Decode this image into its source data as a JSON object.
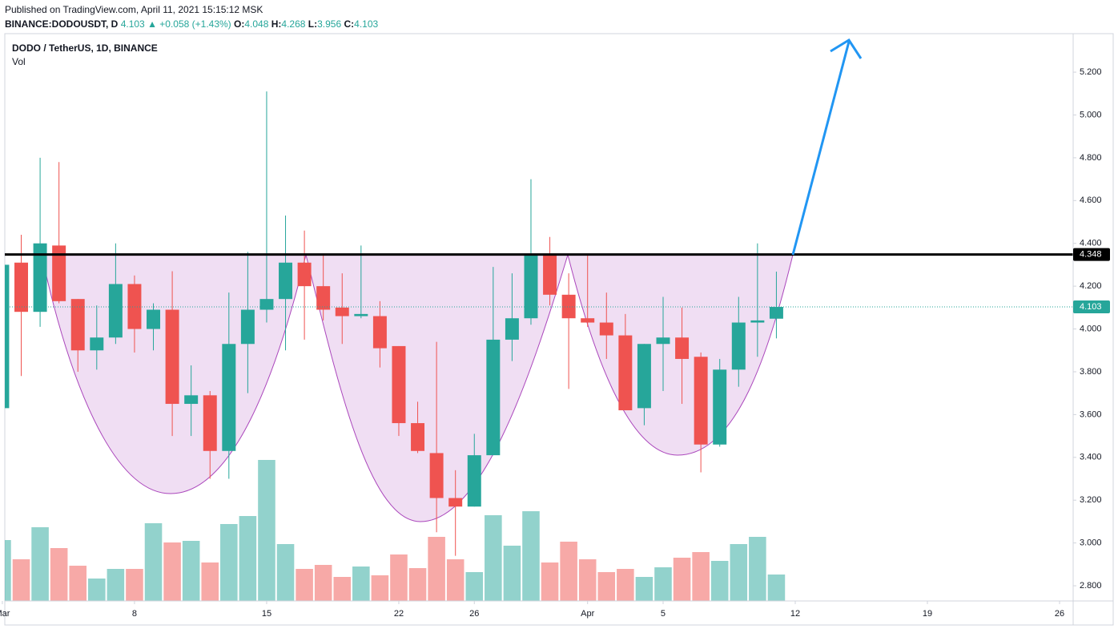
{
  "header": {
    "published": "Published on TradingView.com, April 11, 2021 15:15:12 MSK",
    "symbol": "BINANCE:DODOUSDT, D",
    "price": "4.103",
    "change": "▲ +0.058 (+1.43%)",
    "ohlc": [
      {
        "label": "O:",
        "value": "4.048"
      },
      {
        "label": "H:",
        "value": "4.268"
      },
      {
        "label": "L:",
        "value": "3.956"
      },
      {
        "label": "C:",
        "value": "4.103"
      }
    ]
  },
  "chart_data": {
    "type": "candlestick",
    "title": "DODO / TetherUS, 1D, BINANCE",
    "volume_label": "Vol",
    "up_color": "#26a69a",
    "down_color": "#ef5350",
    "open": [
      3.63,
      4.31,
      4.08,
      4.39,
      4.14,
      3.9,
      3.96,
      4.21,
      4.0,
      4.09,
      3.65,
      3.69,
      3.43,
      3.93,
      4.09,
      4.14,
      4.31,
      4.2,
      4.1,
      4.06,
      4.06,
      3.92,
      3.56,
      3.42,
      3.21,
      3.17,
      3.41,
      3.95,
      4.05,
      4.35,
      4.16,
      4.05,
      4.03,
      3.97,
      3.63,
      3.93,
      3.96,
      3.87,
      3.46,
      3.81,
      4.03,
      4.048
    ],
    "high": [
      4.31,
      4.44,
      4.8,
      4.78,
      4.14,
      4.11,
      4.4,
      4.25,
      4.12,
      4.27,
      3.83,
      3.71,
      4.17,
      4.36,
      5.11,
      4.53,
      4.46,
      4.35,
      4.26,
      4.39,
      4.13,
      3.92,
      3.66,
      3.94,
      3.34,
      3.51,
      4.29,
      4.26,
      4.7,
      4.43,
      4.26,
      4.35,
      4.17,
      4.07,
      3.93,
      4.15,
      4.1,
      3.89,
      3.86,
      4.15,
      4.4,
      4.268
    ],
    "low": [
      3.62,
      3.78,
      4.01,
      4.12,
      3.8,
      3.81,
      3.93,
      3.89,
      3.9,
      3.5,
      3.5,
      3.3,
      3.3,
      3.7,
      4.03,
      3.9,
      3.95,
      4.04,
      3.93,
      4.05,
      3.82,
      3.5,
      3.42,
      3.05,
      2.94,
      3.17,
      3.41,
      3.85,
      4.02,
      4.11,
      3.72,
      4.01,
      3.86,
      3.62,
      3.55,
      3.71,
      3.65,
      3.33,
      3.45,
      3.73,
      3.87,
      3.956
    ],
    "close": [
      4.3,
      4.08,
      4.4,
      4.13,
      3.9,
      3.96,
      4.21,
      4.0,
      4.09,
      3.65,
      3.69,
      3.43,
      3.93,
      4.09,
      4.14,
      4.31,
      4.2,
      4.09,
      4.06,
      4.07,
      3.91,
      3.56,
      3.43,
      3.21,
      3.17,
      3.41,
      3.95,
      4.05,
      4.35,
      4.16,
      4.05,
      4.03,
      3.97,
      3.62,
      3.93,
      3.96,
      3.86,
      3.46,
      3.81,
      4.03,
      4.04,
      4.103
    ],
    "volume": [
      76,
      52,
      92,
      66,
      44,
      28,
      40,
      40,
      97,
      73,
      75,
      48,
      96,
      106,
      176,
      71,
      40,
      45,
      30,
      43,
      32,
      58,
      41,
      80,
      52,
      36,
      107,
      69,
      112,
      48,
      74,
      52,
      36,
      40,
      30,
      42,
      54,
      61,
      50,
      71,
      80,
      33
    ],
    "volume_ylim": [
      0,
      708
    ],
    "xlim": [
      0.13,
      56.72
    ],
    "xticks": [
      {
        "value": 0,
        "label": "Mar"
      },
      {
        "value": 7,
        "label": "8"
      },
      {
        "value": 14,
        "label": "15"
      },
      {
        "value": 21,
        "label": "22"
      },
      {
        "value": 25,
        "label": "26"
      },
      {
        "value": 31,
        "label": "Apr"
      },
      {
        "value": 35,
        "label": "5"
      },
      {
        "value": 42,
        "label": "12"
      },
      {
        "value": 49,
        "label": "19"
      },
      {
        "value": 56,
        "label": "26"
      }
    ],
    "ylim": [
      2.729,
      5.38
    ],
    "yticks": [
      {
        "value": 2.8,
        "label": "2.800"
      },
      {
        "value": 3.0,
        "label": "3.000"
      },
      {
        "value": 3.2,
        "label": "3.200"
      },
      {
        "value": 3.4,
        "label": "3.400"
      },
      {
        "value": 3.6,
        "label": "3.600"
      },
      {
        "value": 3.8,
        "label": "3.800"
      },
      {
        "value": 4.0,
        "label": "4.000"
      },
      {
        "value": 4.2,
        "label": "4.200"
      },
      {
        "value": 4.4,
        "label": "4.400"
      },
      {
        "value": 4.6,
        "label": "4.600"
      },
      {
        "value": 4.8,
        "label": "4.800"
      },
      {
        "value": 5.0,
        "label": "5.000"
      },
      {
        "value": 5.2,
        "label": "5.200"
      }
    ],
    "price_lines": [
      {
        "value": 4.348,
        "color": "#000000",
        "style": "solid"
      },
      {
        "value": 4.103,
        "color": "#26a69a",
        "style": "dotted"
      }
    ],
    "grid": true
  }
}
